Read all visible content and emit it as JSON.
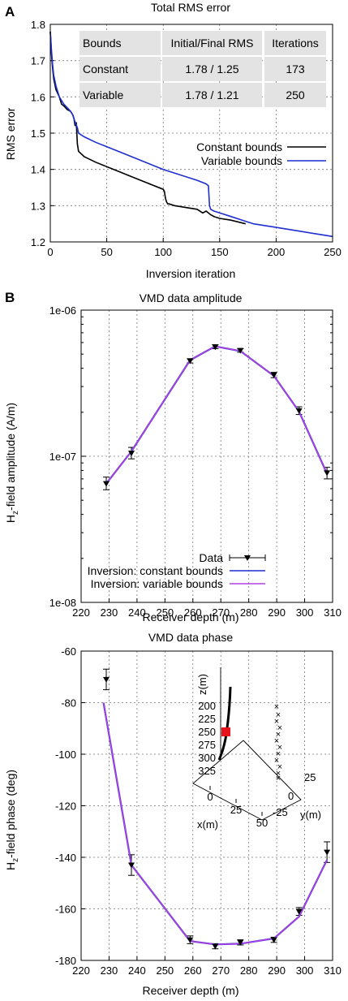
{
  "panels": {
    "a_letter": "A",
    "b_letter": "B"
  },
  "colors": {
    "black": "#000000",
    "blue": "#1f2fd0",
    "magenta": "#b040e0",
    "table_bg": "#e3e3e3",
    "marker_red": "#e8121c"
  },
  "chart_data": [
    {
      "type": "line",
      "title": "Total RMS error",
      "xlabel": "Inversion iteration",
      "ylabel": "RMS error",
      "xlim": [
        0,
        250
      ],
      "ylim": [
        1.2,
        1.8
      ],
      "xticks": [
        "0",
        "50",
        "100",
        "150",
        "200",
        "250"
      ],
      "yticks": [
        "1.2",
        "1.3",
        "1.4",
        "1.5",
        "1.6",
        "1.7",
        "1.8"
      ],
      "grid": true,
      "legend_position": "center-right",
      "series": [
        {
          "name": "Constant bounds",
          "color": "#000000",
          "x": [
            0,
            1,
            2,
            3,
            5,
            8,
            10,
            12,
            15,
            18,
            20,
            21,
            22,
            23,
            24,
            25,
            30,
            40,
            60,
            80,
            100,
            101,
            102,
            103,
            104,
            105,
            110,
            120,
            130,
            135,
            138,
            140,
            142,
            145,
            150,
            160,
            173
          ],
          "y": [
            1.78,
            1.72,
            1.68,
            1.65,
            1.62,
            1.6,
            1.58,
            1.575,
            1.565,
            1.56,
            1.55,
            1.54,
            1.52,
            1.53,
            1.47,
            1.45,
            1.435,
            1.42,
            1.395,
            1.37,
            1.345,
            1.34,
            1.32,
            1.31,
            1.305,
            1.305,
            1.3,
            1.295,
            1.29,
            1.28,
            1.285,
            1.28,
            1.275,
            1.27,
            1.265,
            1.26,
            1.25
          ]
        },
        {
          "name": "Variable bounds",
          "color": "#1f2fd0",
          "x": [
            0,
            1,
            2,
            3,
            5,
            8,
            10,
            12,
            15,
            18,
            20,
            22,
            24,
            25,
            30,
            40,
            60,
            80,
            100,
            120,
            130,
            138,
            140,
            141,
            142,
            145,
            150,
            160,
            170,
            180,
            200,
            220,
            240,
            250
          ],
          "y": [
            1.78,
            1.73,
            1.69,
            1.66,
            1.63,
            1.6,
            1.59,
            1.58,
            1.57,
            1.56,
            1.55,
            1.53,
            1.515,
            1.5,
            1.49,
            1.475,
            1.45,
            1.425,
            1.4,
            1.38,
            1.37,
            1.36,
            1.355,
            1.3,
            1.29,
            1.285,
            1.28,
            1.27,
            1.26,
            1.25,
            1.24,
            1.23,
            1.22,
            1.215
          ]
        }
      ],
      "table": {
        "headers": [
          "Bounds",
          "Initial/Final  RMS",
          "Iterations"
        ],
        "rows": [
          {
            "cells": [
              "Constant",
              "1.78 / 1.25",
              "173"
            ],
            "color": "#000000"
          },
          {
            "cells": [
              "Variable",
              "1.78 / 1.21",
              "250"
            ],
            "color": "#1f2fd0"
          }
        ]
      }
    },
    {
      "type": "line",
      "title": "VMD data amplitude",
      "xlabel": "Receiver depth (m)",
      "ylabel_main": "H",
      "ylabel_sub": "z",
      "ylabel_rest": "-field amplitude (A/m)",
      "scale_y": "log",
      "xlim": [
        220,
        310
      ],
      "ylim": [
        1e-08,
        1e-06
      ],
      "xticks": [
        "220",
        "230",
        "240",
        "250",
        "260",
        "270",
        "280",
        "290",
        "300",
        "310"
      ],
      "yticks": [
        "1e-08",
        "1e-07",
        "1e-06"
      ],
      "grid": true,
      "legend_position": "bottom-center",
      "data_label": "Data",
      "points": {
        "x": [
          229,
          238,
          259,
          268,
          277,
          289,
          298,
          308
        ],
        "y": [
          6.5e-08,
          1.05e-07,
          4.5e-07,
          5.6e-07,
          5.3e-07,
          3.6e-07,
          2.05e-07,
          7.7e-08
        ],
        "err_lo": [
          5.9e-08,
          9.6e-08,
          4.35e-07,
          5.45e-07,
          5.15e-07,
          3.45e-07,
          1.93e-07,
          7e-08
        ],
        "err_hi": [
          7.2e-08,
          1.15e-07,
          4.65e-07,
          5.8e-07,
          5.45e-07,
          3.75e-07,
          2.18e-07,
          8.4e-08
        ]
      },
      "series": [
        {
          "name": "Inversion: constant bounds",
          "color": "#1f2fd0",
          "x": [
            229,
            238,
            259,
            268,
            277,
            289,
            298,
            308
          ],
          "y": [
            6.5e-08,
            1.08e-07,
            4.55e-07,
            5.65e-07,
            5.25e-07,
            3.55e-07,
            2.02e-07,
            7.6e-08
          ]
        },
        {
          "name": "Inversion: variable bounds",
          "color": "#b040e0",
          "x": [
            229,
            238,
            259,
            268,
            277,
            289,
            298,
            308
          ],
          "y": [
            6.5e-08,
            1.08e-07,
            4.55e-07,
            5.65e-07,
            5.25e-07,
            3.55e-07,
            2.02e-07,
            7.6e-08
          ]
        }
      ]
    },
    {
      "type": "line",
      "title": "VMD data phase",
      "xlabel": "Receiver depth (m)",
      "ylabel_main": "H",
      "ylabel_sub": "z",
      "ylabel_rest": "-field phase (deg)",
      "xlim": [
        220,
        310
      ],
      "ylim": [
        -180,
        -60
      ],
      "xticks": [
        "220",
        "230",
        "240",
        "250",
        "260",
        "270",
        "280",
        "290",
        "300",
        "310"
      ],
      "yticks": [
        "-180",
        "-160",
        "-140",
        "-120",
        "-100",
        "-80",
        "-60"
      ],
      "grid": true,
      "points": {
        "x": [
          229,
          238,
          259,
          268,
          277,
          289,
          298,
          308
        ],
        "y": [
          -71,
          -143,
          -172,
          -174.5,
          -173,
          -172,
          -161,
          -138
        ],
        "err_lo": [
          -75,
          -147,
          -173.5,
          -175.5,
          -174,
          -173,
          -162.5,
          -142
        ],
        "err_hi": [
          -67,
          -139,
          -170.5,
          -173.5,
          -172,
          -171,
          -159.5,
          -134
        ]
      },
      "series": [
        {
          "name": "Inversion: constant bounds",
          "color": "#1f2fd0",
          "x": [
            228,
            238,
            259,
            268,
            277,
            289,
            298,
            308
          ],
          "y": [
            -80,
            -143,
            -172.5,
            -173.8,
            -173.5,
            -171.5,
            -163,
            -141
          ]
        },
        {
          "name": "Inversion: variable bounds",
          "color": "#b040e0",
          "x": [
            228,
            238,
            259,
            268,
            277,
            289,
            298,
            308
          ],
          "y": [
            -80,
            -143,
            -172.5,
            -173.8,
            -173.5,
            -171.5,
            -163,
            -141
          ]
        }
      ],
      "inset": {
        "zlabel": "z(m)",
        "xlabel": "x(m)",
        "ylabel": "y(m)",
        "z_ticks": [
          "200",
          "225",
          "250",
          "275",
          "300",
          "325"
        ],
        "x_ticks": [
          "0",
          "25",
          "50"
        ],
        "y_ticks": [
          "25",
          "0",
          "-25"
        ]
      }
    }
  ]
}
